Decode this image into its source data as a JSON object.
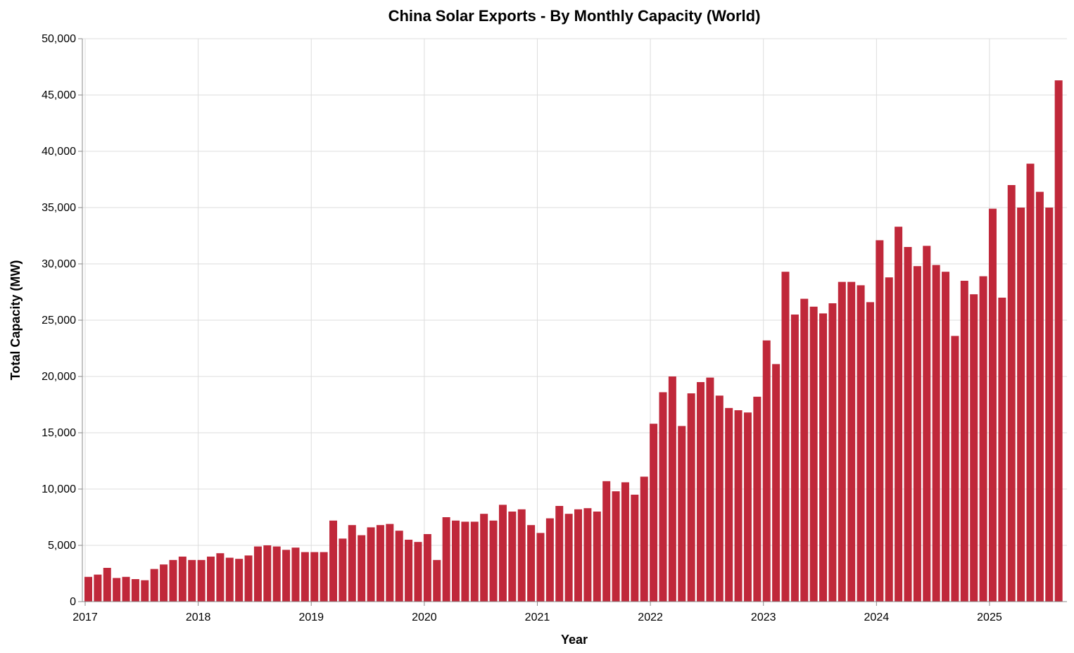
{
  "chart_data": {
    "type": "bar",
    "title": "China Solar Exports - By Monthly Capacity (World)",
    "xlabel": "Year",
    "ylabel": "Total Capacity (MW)",
    "ylim": [
      0,
      50000
    ],
    "y_ticks": [
      "0",
      "5,000",
      "10,000",
      "15,000",
      "20,000",
      "25,000",
      "30,000",
      "35,000",
      "40,000",
      "45,000",
      "50,000"
    ],
    "x_ticks": [
      "2017",
      "2018",
      "2019",
      "2020",
      "2021",
      "2022",
      "2023",
      "2024",
      "2025"
    ],
    "grid": true,
    "bar_color": "#c0283a",
    "start_year": 2017,
    "start_month": 1,
    "values": [
      2200,
      2400,
      3000,
      2100,
      2200,
      2000,
      1900,
      2900,
      3300,
      3700,
      4000,
      3700,
      3700,
      4000,
      4300,
      3900,
      3800,
      4100,
      4900,
      5000,
      4900,
      4600,
      4800,
      4400,
      4400,
      4400,
      7200,
      5600,
      6800,
      5900,
      6600,
      6800,
      6900,
      6300,
      5500,
      5300,
      6000,
      3700,
      7500,
      7200,
      7100,
      7100,
      7800,
      7200,
      8600,
      8000,
      8200,
      6800,
      6100,
      7400,
      8500,
      7800,
      8200,
      8300,
      8000,
      10700,
      9800,
      10600,
      9500,
      11100,
      15800,
      18600,
      20000,
      15600,
      18500,
      19500,
      19900,
      18300,
      17200,
      17000,
      16800,
      18200,
      23200,
      21100,
      29300,
      25500,
      26900,
      26200,
      25600,
      26500,
      28400,
      28400,
      28100,
      26600,
      32100,
      28800,
      33300,
      31500,
      29800,
      31600,
      29900,
      29300,
      23600,
      28500,
      27300,
      28900,
      34900,
      27000,
      37000,
      35000,
      38900,
      36400,
      35000,
      46300
    ]
  }
}
